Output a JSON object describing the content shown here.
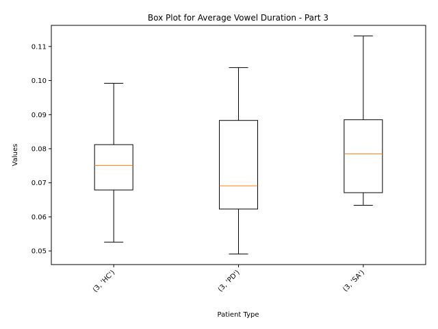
{
  "chart_data": {
    "type": "box",
    "title": "Box Plot for Average Vowel Duration - Part 3",
    "xlabel": "Patient Type",
    "ylabel": "Values",
    "ylim": [
      0.046,
      0.1162
    ],
    "yticks": [
      0.05,
      0.06,
      0.07,
      0.08,
      0.09,
      0.1,
      0.11
    ],
    "ytick_labels": [
      "0.05",
      "0.06",
      "0.07",
      "0.08",
      "0.09",
      "0.10",
      "0.11"
    ],
    "categories": [
      "(3, 'HC')",
      "(3, 'PD')",
      "(3, 'SA')"
    ],
    "boxes": [
      {
        "whisker_low": 0.0526,
        "q1": 0.0679,
        "median": 0.0751,
        "q3": 0.0812,
        "whisker_high": 0.0992
      },
      {
        "whisker_low": 0.0491,
        "q1": 0.0623,
        "median": 0.0691,
        "q3": 0.0883,
        "whisker_high": 0.1038
      },
      {
        "whisker_low": 0.0634,
        "q1": 0.0671,
        "median": 0.0785,
        "q3": 0.0885,
        "whisker_high": 0.1131
      }
    ],
    "colors": {
      "box": "#000000",
      "median": "#ff7f0e",
      "axes": "#000000"
    }
  }
}
